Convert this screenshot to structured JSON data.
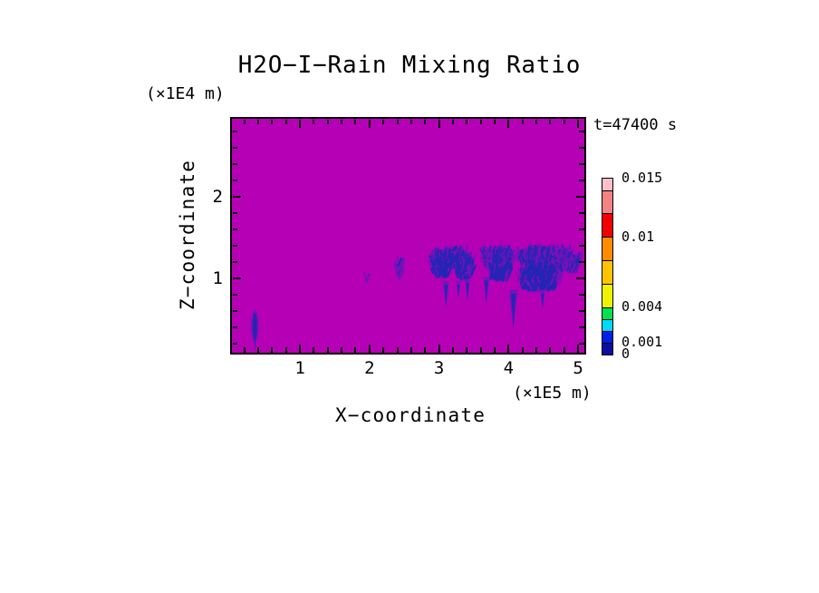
{
  "chart_data": {
    "type": "heatmap",
    "title": "H2O−I−Rain Mixing Ratio",
    "time_annotation": "t=47400 s",
    "xlabel": "X−coordinate",
    "ylabel": "Z−coordinate",
    "x_units_label": "(×1E5 m)",
    "y_units_label": "(×1E4 m)",
    "xlim": [
      0,
      5.12
    ],
    "ylim": [
      0.06,
      2.97
    ],
    "grid": false,
    "x_tick_values": [
      1,
      2,
      3,
      4,
      5
    ],
    "x_tick_labels": [
      "1",
      "2",
      "3",
      "4",
      "5"
    ],
    "x_minor_step": 0.2,
    "y_tick_values": [
      1,
      2
    ],
    "y_tick_labels": [
      "1",
      "2"
    ],
    "y_minor_step": 0.2,
    "field_background": {
      "value": 0,
      "color": "#b600b6"
    },
    "field_colors": {
      "rain_core": "#2525b5",
      "rain_halo": "#7712b8"
    },
    "colorbar": {
      "position": "right",
      "min": 0,
      "max": 0.015,
      "levels": [
        0,
        0.001,
        0.002,
        0.003,
        0.004,
        0.006,
        0.008,
        0.01,
        0.012,
        0.014,
        0.015
      ],
      "segment_colors_bottom_to_top": [
        "#0d0da0",
        "#0020e8",
        "#00d8ff",
        "#00e050",
        "#f0f200",
        "#ffc400",
        "#ff8c00",
        "#f20000",
        "#f58282",
        "#ffc0c8"
      ],
      "labeled_values": [
        0,
        0.001,
        0.004,
        0.01,
        0.015
      ],
      "labels": [
        "0",
        "0.001",
        "0.004",
        "0.01",
        "0.015"
      ]
    },
    "features": {
      "clusters": [
        {
          "cx": 2.42,
          "cy": 1.09,
          "rx": 0.05,
          "ry": 0.14,
          "n": 40,
          "core": 0.3
        },
        {
          "cx": 1.96,
          "cy": 0.95,
          "rx": 0.02,
          "ry": 0.02,
          "n": 4,
          "core": 0.2
        },
        {
          "cx": 3.16,
          "cy": 1.19,
          "rx": 0.33,
          "ry": 0.11,
          "n": 520,
          "core": 0.55
        },
        {
          "cx": 3.03,
          "cy": 1.09,
          "rx": 0.16,
          "ry": 0.12,
          "n": 340,
          "core": 0.8
        },
        {
          "cx": 3.37,
          "cy": 1.06,
          "rx": 0.13,
          "ry": 0.12,
          "n": 300,
          "core": 0.8
        },
        {
          "cx": 3.83,
          "cy": 1.2,
          "rx": 0.25,
          "ry": 0.11,
          "n": 420,
          "core": 0.55
        },
        {
          "cx": 3.87,
          "cy": 1.05,
          "rx": 0.17,
          "ry": 0.12,
          "n": 380,
          "core": 0.8
        },
        {
          "cx": 4.49,
          "cy": 1.23,
          "rx": 0.43,
          "ry": 0.09,
          "n": 520,
          "core": 0.5
        },
        {
          "cx": 4.43,
          "cy": 0.97,
          "rx": 0.33,
          "ry": 0.17,
          "n": 1150,
          "core": 0.85
        },
        {
          "cx": 4.87,
          "cy": 1.13,
          "rx": 0.16,
          "ry": 0.09,
          "n": 200,
          "core": 0.45
        }
      ],
      "spikes": [
        {
          "x": 3.1,
          "y_top": 0.92,
          "y_bottom": 0.66,
          "w": 0.05
        },
        {
          "x": 3.28,
          "y_top": 0.92,
          "y_bottom": 0.77,
          "w": 0.035
        },
        {
          "x": 3.41,
          "y_top": 0.94,
          "y_bottom": 0.74,
          "w": 0.04
        },
        {
          "x": 3.68,
          "y_top": 0.97,
          "y_bottom": 0.71,
          "w": 0.05
        },
        {
          "x": 4.07,
          "y_top": 0.81,
          "y_bottom": 0.4,
          "w": 0.07
        },
        {
          "x": 4.49,
          "y_top": 0.81,
          "y_bottom": 0.64,
          "w": 0.04
        }
      ],
      "left_streak": {
        "cx": 0.352,
        "cy": 0.41,
        "rx": 0.032,
        "ry": 0.165,
        "tail_bottom": 0.075
      }
    }
  }
}
